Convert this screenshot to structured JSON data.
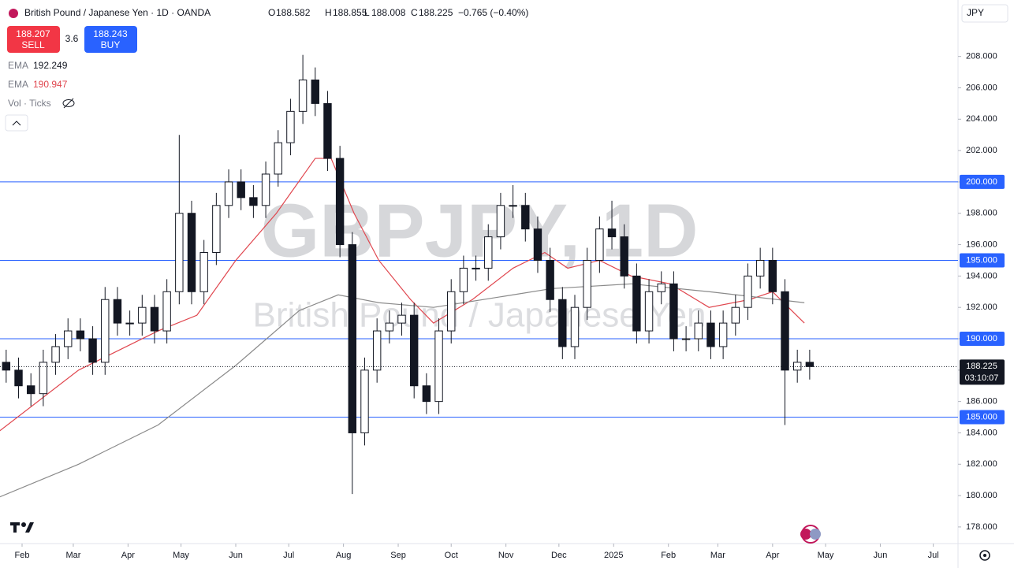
{
  "header": {
    "title": "British Pound / Japanese Yen · 1D · OANDA",
    "open_label": "O",
    "open": "188.582",
    "high_label": "H",
    "high": "188.855",
    "low_label": "L",
    "low": "188.008",
    "close_label": "C",
    "close": "188.225",
    "change": "−0.765 (−0.40%)",
    "sell_price": "188.207",
    "sell_label": "SELL",
    "spread": "3.6",
    "buy_price": "188.243",
    "buy_label": "BUY",
    "currency": "JPY",
    "indicators": [
      {
        "name": "EMA",
        "value": "192.249"
      },
      {
        "name": "EMA",
        "value": "190.947"
      }
    ],
    "volume": "Vol · Ticks",
    "watermark_symbol": "GBPJPY, 1D",
    "watermark_name": "British Pound / Japanese Yen"
  },
  "chart_data": {
    "type": "candlestick",
    "xlim": [
      18.5,
      561
    ],
    "xticks": [
      {
        "value": 31,
        "label": "Feb"
      },
      {
        "value": 60,
        "label": "Mar"
      },
      {
        "value": 91,
        "label": "Apr"
      },
      {
        "value": 121,
        "label": "May"
      },
      {
        "value": 152,
        "label": "Jun"
      },
      {
        "value": 182,
        "label": "Jul"
      },
      {
        "value": 213,
        "label": "Aug"
      },
      {
        "value": 244,
        "label": "Sep"
      },
      {
        "value": 274,
        "label": "Oct"
      },
      {
        "value": 305,
        "label": "Nov"
      },
      {
        "value": 335,
        "label": "Dec"
      },
      {
        "value": 366,
        "label": "2025"
      },
      {
        "value": 397,
        "label": "Feb"
      },
      {
        "value": 425,
        "label": "Mar"
      },
      {
        "value": 456,
        "label": "Apr"
      },
      {
        "value": 486,
        "label": "May"
      },
      {
        "value": 517,
        "label": "Jun"
      },
      {
        "value": 547,
        "label": "Jul"
      }
    ],
    "ylim": [
      176.94,
      211.6
    ],
    "yticks": [
      {
        "value": 178,
        "label": "178.000"
      },
      {
        "value": 180,
        "label": "180.000"
      },
      {
        "value": 182,
        "label": "182.000"
      },
      {
        "value": 184,
        "label": "184.000"
      },
      {
        "value": 186,
        "label": "186.000"
      },
      {
        "value": 188,
        "label": "188.000"
      },
      {
        "value": 190,
        "label": "190.000"
      },
      {
        "value": 192,
        "label": "192.000"
      },
      {
        "value": 194,
        "label": "194.000"
      },
      {
        "value": 196,
        "label": "196.000"
      },
      {
        "value": 198,
        "label": "198.000"
      },
      {
        "value": 200,
        "label": "200.000"
      },
      {
        "value": 202,
        "label": "202.000"
      },
      {
        "value": 204,
        "label": "204.000"
      },
      {
        "value": 206,
        "label": "206.000"
      },
      {
        "value": 208,
        "label": "208.000"
      }
    ],
    "x": [
      22,
      29,
      36,
      43,
      50,
      57,
      64,
      71,
      78,
      85,
      92,
      99,
      106,
      113,
      120,
      127,
      134,
      141,
      148,
      155,
      162,
      169,
      176,
      183,
      190,
      197,
      204,
      211,
      218,
      225,
      232,
      239,
      246,
      253,
      260,
      267,
      274,
      281,
      288,
      295,
      302,
      309,
      316,
      323,
      330,
      337,
      344,
      351,
      358,
      365,
      372,
      379,
      386,
      393,
      400,
      407,
      414,
      421,
      428,
      435,
      442,
      449,
      456,
      463,
      470,
      477
    ],
    "open": [
      188.5,
      188,
      187,
      186.5,
      188.5,
      189.5,
      190.5,
      190,
      188.5,
      192.5,
      191,
      191,
      192,
      190.5,
      193,
      198,
      193,
      195.5,
      198.5,
      200,
      199,
      198.5,
      200.5,
      202.5,
      204.5,
      206.5,
      205,
      201.5,
      196,
      184,
      188,
      190.5,
      191,
      191.5,
      187,
      186,
      190.5,
      193,
      194.5,
      194.5,
      196.5,
      198.5,
      198.5,
      197,
      195,
      192.5,
      189.5,
      192,
      195,
      197,
      196.5,
      194,
      190.5,
      193,
      193.5,
      190,
      190,
      191,
      189.5,
      191,
      192,
      194,
      195,
      193,
      188,
      188.5
    ],
    "high": [
      189.3,
      188.8,
      187.8,
      189.3,
      190.3,
      191.3,
      191.3,
      190.8,
      193.3,
      193.3,
      191.8,
      192.8,
      192.8,
      193.8,
      203,
      198.8,
      196.3,
      199.3,
      200.8,
      200.8,
      199.8,
      201.3,
      203.3,
      205.3,
      208.1,
      207.3,
      205.8,
      202.3,
      196.8,
      188.8,
      191.3,
      191.8,
      192.3,
      192.3,
      187.8,
      191.3,
      193.8,
      195.3,
      195.3,
      197.3,
      199.3,
      199.8,
      199.3,
      197.8,
      195.8,
      193.3,
      192.8,
      195.8,
      197.8,
      198.8,
      197.3,
      194.8,
      193.8,
      194.3,
      194.3,
      190.8,
      191.8,
      191.8,
      191.8,
      192.8,
      194.8,
      195.8,
      195.8,
      193.8,
      189.3,
      189.3
    ],
    "low": [
      187.2,
      186.2,
      185.7,
      185.7,
      187.7,
      188.7,
      189.2,
      187.7,
      187.7,
      190.2,
      190.2,
      190.2,
      189.7,
      189.7,
      192.2,
      192.2,
      192.2,
      194.7,
      197.7,
      198.2,
      197.7,
      197.7,
      199.7,
      201.7,
      203.7,
      204.2,
      200.7,
      195.2,
      180.1,
      183.2,
      187.2,
      189.7,
      190.2,
      186.2,
      185.2,
      185.2,
      189.7,
      192.2,
      193.7,
      193.7,
      195.7,
      197.7,
      196.2,
      194.2,
      191.7,
      188.7,
      188.7,
      191.2,
      194.2,
      195.7,
      193.2,
      189.7,
      189.7,
      192.2,
      189.2,
      189.2,
      189.2,
      188.7,
      188.7,
      190.2,
      191.2,
      193.2,
      192.2,
      184.5,
      187.2,
      187.4
    ],
    "close": [
      188,
      187,
      186.5,
      188.5,
      189.5,
      190.5,
      190,
      188.5,
      192.5,
      191,
      191,
      192,
      190.5,
      193,
      198,
      193,
      195.5,
      198.5,
      200,
      199,
      198.5,
      200.5,
      202.5,
      204.5,
      206.5,
      205,
      201.5,
      196,
      184,
      188,
      190.5,
      191,
      191.5,
      187,
      186,
      190.5,
      193,
      194.5,
      194.5,
      196.5,
      198.5,
      198.5,
      197,
      195,
      192.5,
      189.5,
      192,
      195,
      197,
      196.5,
      194,
      190.5,
      193,
      193.5,
      190,
      190,
      191,
      189.5,
      191,
      192,
      194,
      195,
      193,
      188,
      188.5,
      188.225
    ],
    "lines": [
      {
        "name": "EMA",
        "color": "#e0464e",
        "x": [
          18,
          63,
          108,
          130,
          152,
          175,
          197,
          206,
          219,
          233,
          251,
          264,
          286,
          309,
          327,
          340,
          358,
          376,
          398,
          420,
          443,
          456,
          474
        ],
        "values": [
          184.1,
          188,
          190.5,
          191.5,
          195,
          198,
          201.5,
          201.5,
          198,
          195,
          192.5,
          191,
          192.5,
          194.5,
          195.5,
          194.5,
          195,
          194,
          193.5,
          192,
          192.5,
          193,
          191
        ]
      },
      {
        "name": "EMA",
        "color": "#8a8a8a",
        "x": [
          18,
          63,
          108,
          152,
          188,
          210,
          233,
          264,
          309,
          331,
          376,
          420,
          474
        ],
        "values": [
          179.9,
          182,
          184.5,
          188.3,
          191.8,
          192.8,
          192.3,
          192,
          192.8,
          193.2,
          193.5,
          193,
          192.3
        ]
      }
    ],
    "levels": [
      {
        "value": 200,
        "label": "200.000"
      },
      {
        "value": 195,
        "label": "195.000"
      },
      {
        "value": 190,
        "label": "190.000"
      },
      {
        "value": 185,
        "label": "185.000"
      }
    ],
    "last_price": {
      "value": 188.225,
      "label": "188.225",
      "countdown": "03:10:07"
    },
    "level_color": "#2962ff"
  }
}
